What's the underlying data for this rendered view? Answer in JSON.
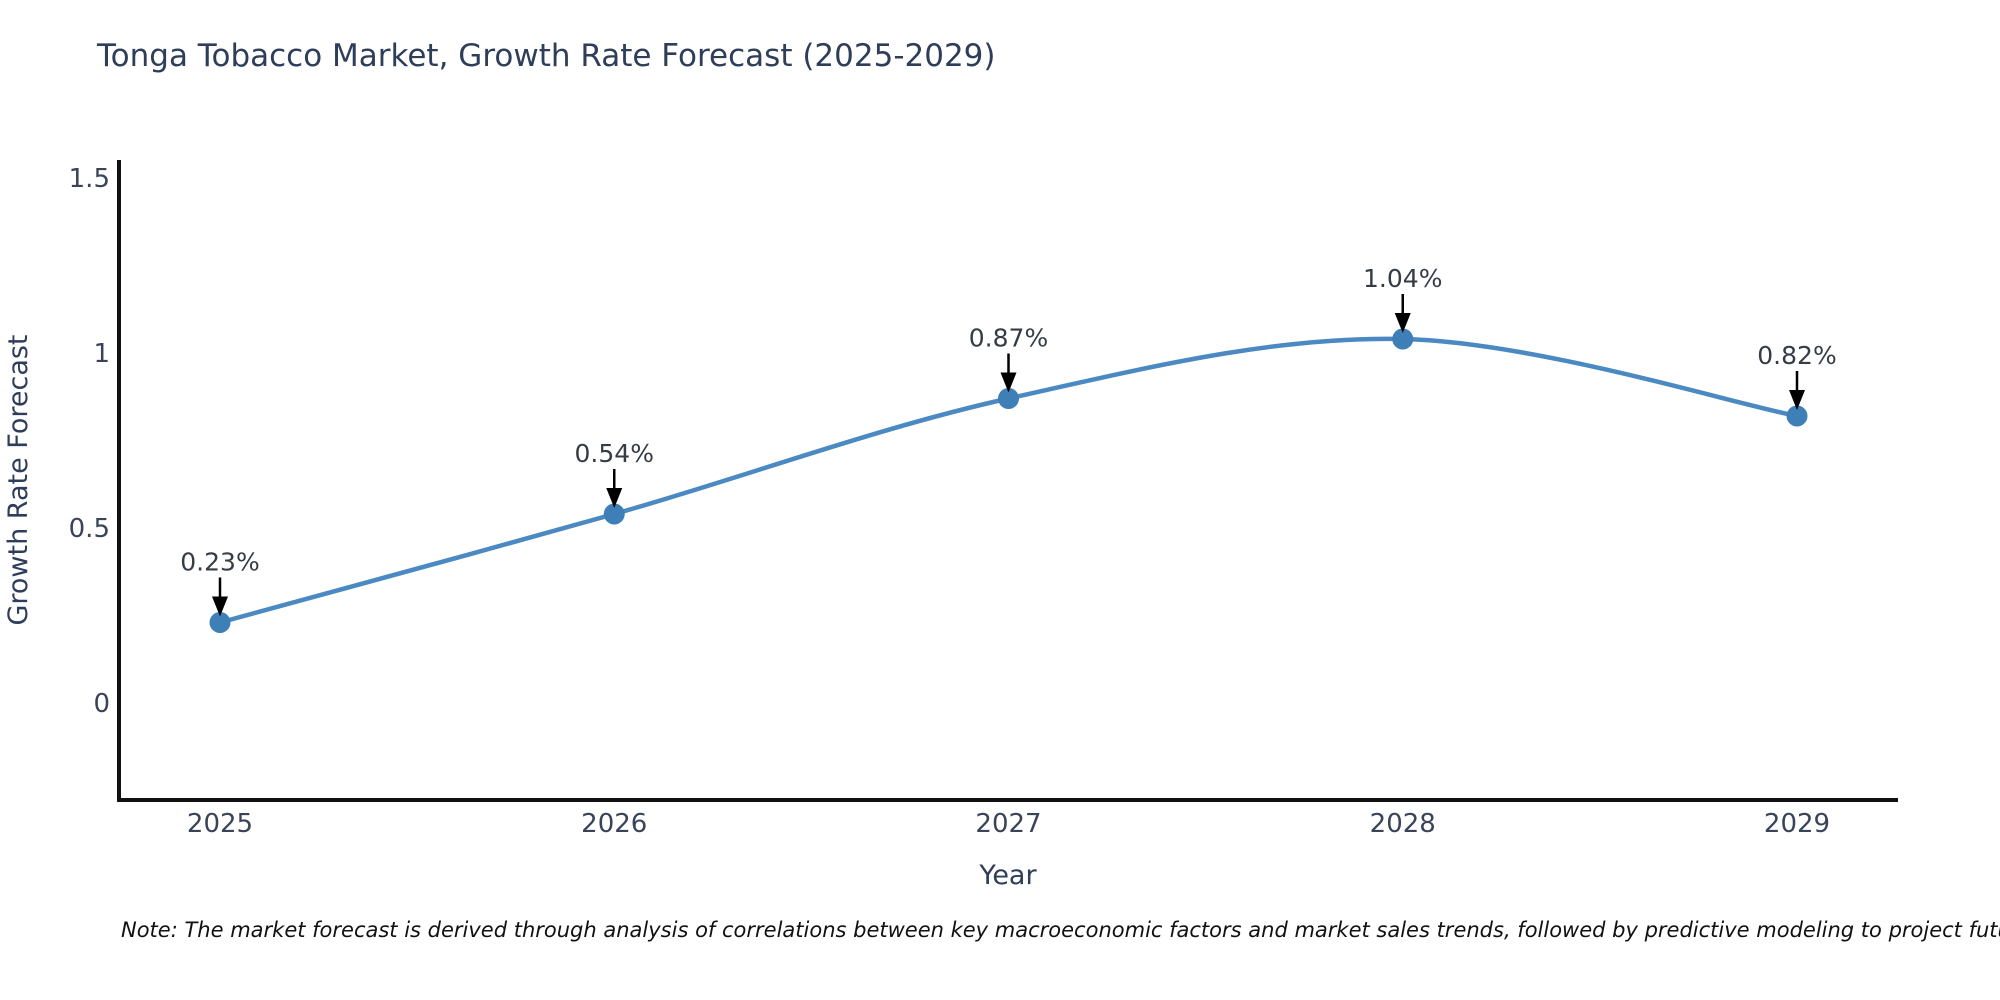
{
  "title": "Tonga Tobacco Market, Growth Rate Forecast (2025-2029)",
  "note": "Note: The market forecast is derived through analysis of correlations between key macroeconomic factors and market sales trends, followed by predictive modeling to project future sales",
  "chart_data": {
    "type": "line",
    "title": "Tonga Tobacco Market, Growth Rate Forecast (2025-2029)",
    "xlabel": "Year",
    "ylabel": "Growth Rate Forecast",
    "categories": [
      "2025",
      "2026",
      "2027",
      "2028",
      "2029"
    ],
    "values": [
      0.23,
      0.54,
      0.87,
      1.04,
      0.82
    ],
    "point_labels": [
      "0.23%",
      "0.54%",
      "0.87%",
      "1.04%",
      "0.82%"
    ],
    "yticks": [
      0,
      0.5,
      1,
      1.5
    ],
    "ytick_labels": [
      "0",
      "0.5",
      "1",
      "1.5"
    ],
    "ylim": [
      -0.28,
      1.55
    ],
    "grid": false,
    "legend": "none",
    "curve": "spline",
    "annotations": "black-arrows-from-labels-to-points",
    "colors": {
      "line": "#4a89c2",
      "marker": "#3e7fb8",
      "axis": "#111111",
      "arrow": "#000000",
      "title_text": "#2e3d59",
      "tick_text": "#3a4459",
      "point_label_text": "#363c46",
      "note_text": "#111111",
      "background": "#ffffff"
    }
  }
}
